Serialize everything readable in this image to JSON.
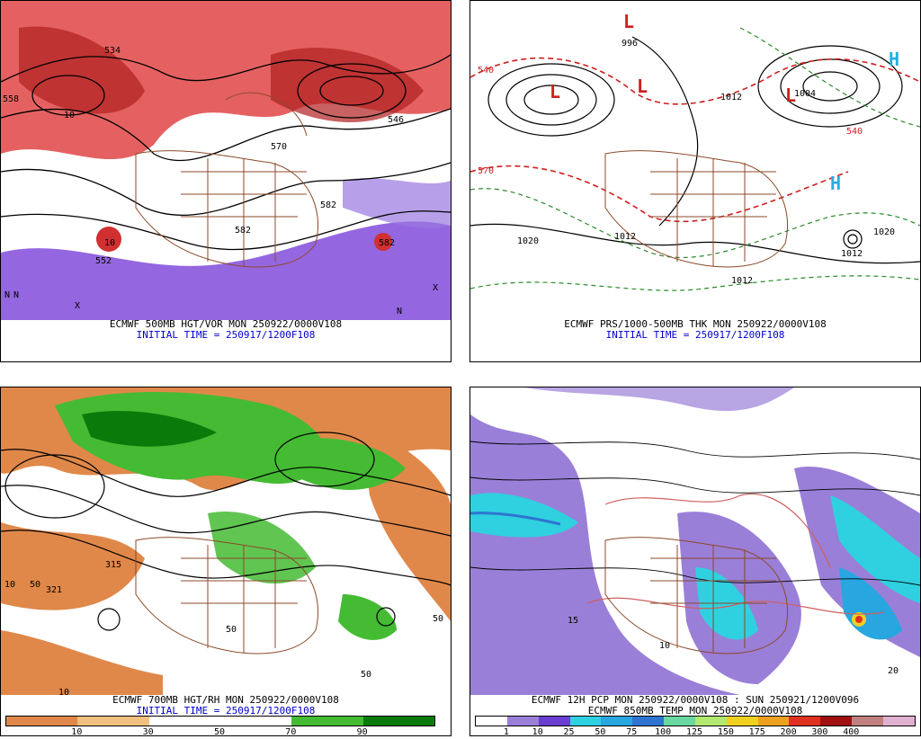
{
  "panels": [
    {
      "caption_line1": "ECMWF 500MB HGT/VOR MON 250922/0000V108",
      "caption_line2": "INITIAL TIME = 250917/1200F108",
      "labels": [
        "558",
        "534",
        "570",
        "546",
        "582",
        "552",
        "582",
        "582",
        "10",
        "10",
        "N",
        "N",
        "N",
        "X",
        "X"
      ]
    },
    {
      "caption_line1": "ECMWF PRS/1000-500MB THK MON 250922/0000V108",
      "caption_line2": "INITIAL TIME = 250917/1200F108",
      "labels": [
        "996",
        "1004",
        "1020",
        "1012",
        "1012",
        "1020",
        "1012",
        "1012",
        "540",
        "540",
        "570",
        "L",
        "L",
        "L",
        "L",
        "H",
        "H"
      ]
    },
    {
      "caption_line1": "ECMWF 700MB HGT/RH MON 250922/0000V108",
      "caption_line2": "INITIAL TIME = 250917/1200F108",
      "labels": [
        "315",
        "321",
        "10",
        "50",
        "50",
        "50",
        "50",
        "10"
      ],
      "colorbar": {
        "colors": [
          "#e0884a",
          "#f0c080",
          "#ffffff",
          "#ffffff",
          "#44bb33",
          "#0a7a0a"
        ],
        "ticks": [
          "10",
          "30",
          "50",
          "70",
          "90"
        ]
      }
    },
    {
      "caption_line1": "ECMWF 12H PCP MON 250922/0000V108 : SUN 250921/1200V096",
      "caption_line2": "ECMWF 850MB TEMP MON 250922/0000V108",
      "labels": [
        "15",
        "10",
        "20"
      ],
      "colorbar": {
        "colors": [
          "#ffffff",
          "#9a7fd8",
          "#6a3ed0",
          "#2fd0e0",
          "#28a6e0",
          "#2e74d0",
          "#6ad8a0",
          "#b0e870",
          "#f0d020",
          "#f0a020",
          "#e03020",
          "#a01010",
          "#c08080",
          "#e0b0d0"
        ],
        "ticks": [
          "1",
          "10",
          "25",
          "50",
          "75",
          "100",
          "125",
          "150",
          "175",
          "200",
          "300",
          "400"
        ]
      }
    }
  ]
}
